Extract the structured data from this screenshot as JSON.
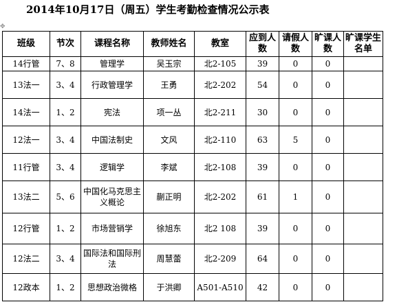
{
  "title": "2014年10月17日（周五）学生考勤检查情况公示表",
  "headers": [
    "班级",
    "节次",
    "课程名称",
    "教师姓名",
    "教室",
    "应到人数",
    "请假人数",
    "旷课人数",
    "旷课学生名单"
  ],
  "rows": [
    [
      "14行管",
      "7、8",
      "管理学",
      "吴玉宗",
      "北2-105",
      "39",
      "0",
      "0",
      ""
    ],
    [
      "13法一",
      "3、4",
      "行政管理学",
      "王勇",
      "北2-202",
      "54",
      "0",
      "0",
      ""
    ],
    [
      "14法一",
      "1、2",
      "宪法",
      "项一丛",
      "北2-211",
      "30",
      "0",
      "0",
      ""
    ],
    [
      "12法一",
      "3、4",
      "中国法制史",
      "文风",
      "北2-110",
      "63",
      "5",
      "0",
      ""
    ],
    [
      "11行管",
      "3、4",
      "逻辑学",
      "李斌",
      "北2-108",
      "39",
      "0",
      "0",
      ""
    ],
    [
      "13法二",
      "5、6",
      "中国化马克思主义概论",
      "蒯正明",
      "北2-202",
      "61",
      "1",
      "0",
      ""
    ],
    [
      "12行管",
      "1、2",
      "市场营销学",
      "徐旭东",
      "北2 108",
      "39",
      "0",
      "0",
      ""
    ],
    [
      "12法二",
      "3、4",
      "国际法和国际刑法",
      "周慧蕾",
      "北2-209",
      "64",
      "0",
      "0",
      ""
    ],
    [
      "12政本",
      "1、2",
      "思想政治微格",
      "于洪卿",
      "A501-A510",
      "42",
      "0",
      "0",
      ""
    ]
  ]
}
